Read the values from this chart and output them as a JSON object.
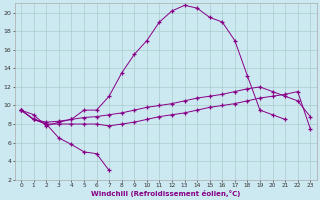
{
  "xlabel": "Windchill (Refroidissement éolien,°C)",
  "bg_color": "#cce8f0",
  "grid_color": "#aacccc",
  "line_color": "#880088",
  "xlim": [
    -0.5,
    23.5
  ],
  "ylim": [
    2,
    21
  ],
  "xticks": [
    0,
    1,
    2,
    3,
    4,
    5,
    6,
    7,
    8,
    9,
    10,
    11,
    12,
    13,
    14,
    15,
    16,
    17,
    18,
    19,
    20,
    21,
    22,
    23
  ],
  "yticks": [
    2,
    4,
    6,
    8,
    10,
    12,
    14,
    16,
    18,
    20
  ],
  "line1_x": [
    0,
    1,
    2,
    3,
    4,
    5,
    6,
    7,
    8,
    9,
    10,
    11,
    12,
    13,
    14,
    15,
    16,
    17,
    18,
    19,
    20,
    21
  ],
  "line1_y": [
    9.5,
    9.0,
    7.8,
    8.2,
    8.5,
    9.5,
    9.5,
    11.0,
    13.5,
    15.5,
    17.0,
    19.0,
    20.2,
    20.8,
    20.5,
    19.5,
    19.0,
    17.0,
    13.2,
    9.5,
    9.0,
    8.5
  ],
  "line2_x": [
    0,
    1,
    2,
    3,
    4,
    5,
    6,
    7
  ],
  "line2_y": [
    9.5,
    8.5,
    8.0,
    6.5,
    5.8,
    5.0,
    4.8,
    3.0
  ],
  "line3_x": [
    0,
    1,
    2,
    3,
    4,
    5,
    6,
    7,
    8,
    9,
    10,
    11,
    12,
    13,
    14,
    15,
    16,
    17,
    18,
    19,
    20,
    21,
    22,
    23
  ],
  "line3_y": [
    9.5,
    8.5,
    8.2,
    8.3,
    8.5,
    8.7,
    8.8,
    9.0,
    9.2,
    9.5,
    9.8,
    10.0,
    10.2,
    10.5,
    10.8,
    11.0,
    11.2,
    11.5,
    11.8,
    12.0,
    11.5,
    11.0,
    10.5,
    8.8
  ],
  "line4_x": [
    0,
    1,
    2,
    3,
    4,
    5,
    6,
    7,
    8,
    9,
    10,
    11,
    12,
    13,
    14,
    15,
    16,
    17,
    18,
    19,
    20,
    21,
    22,
    23
  ],
  "line4_y": [
    9.5,
    8.5,
    8.0,
    8.0,
    8.0,
    8.0,
    8.0,
    7.8,
    8.0,
    8.2,
    8.5,
    8.8,
    9.0,
    9.2,
    9.5,
    9.8,
    10.0,
    10.2,
    10.5,
    10.8,
    11.0,
    11.2,
    11.5,
    7.5
  ]
}
